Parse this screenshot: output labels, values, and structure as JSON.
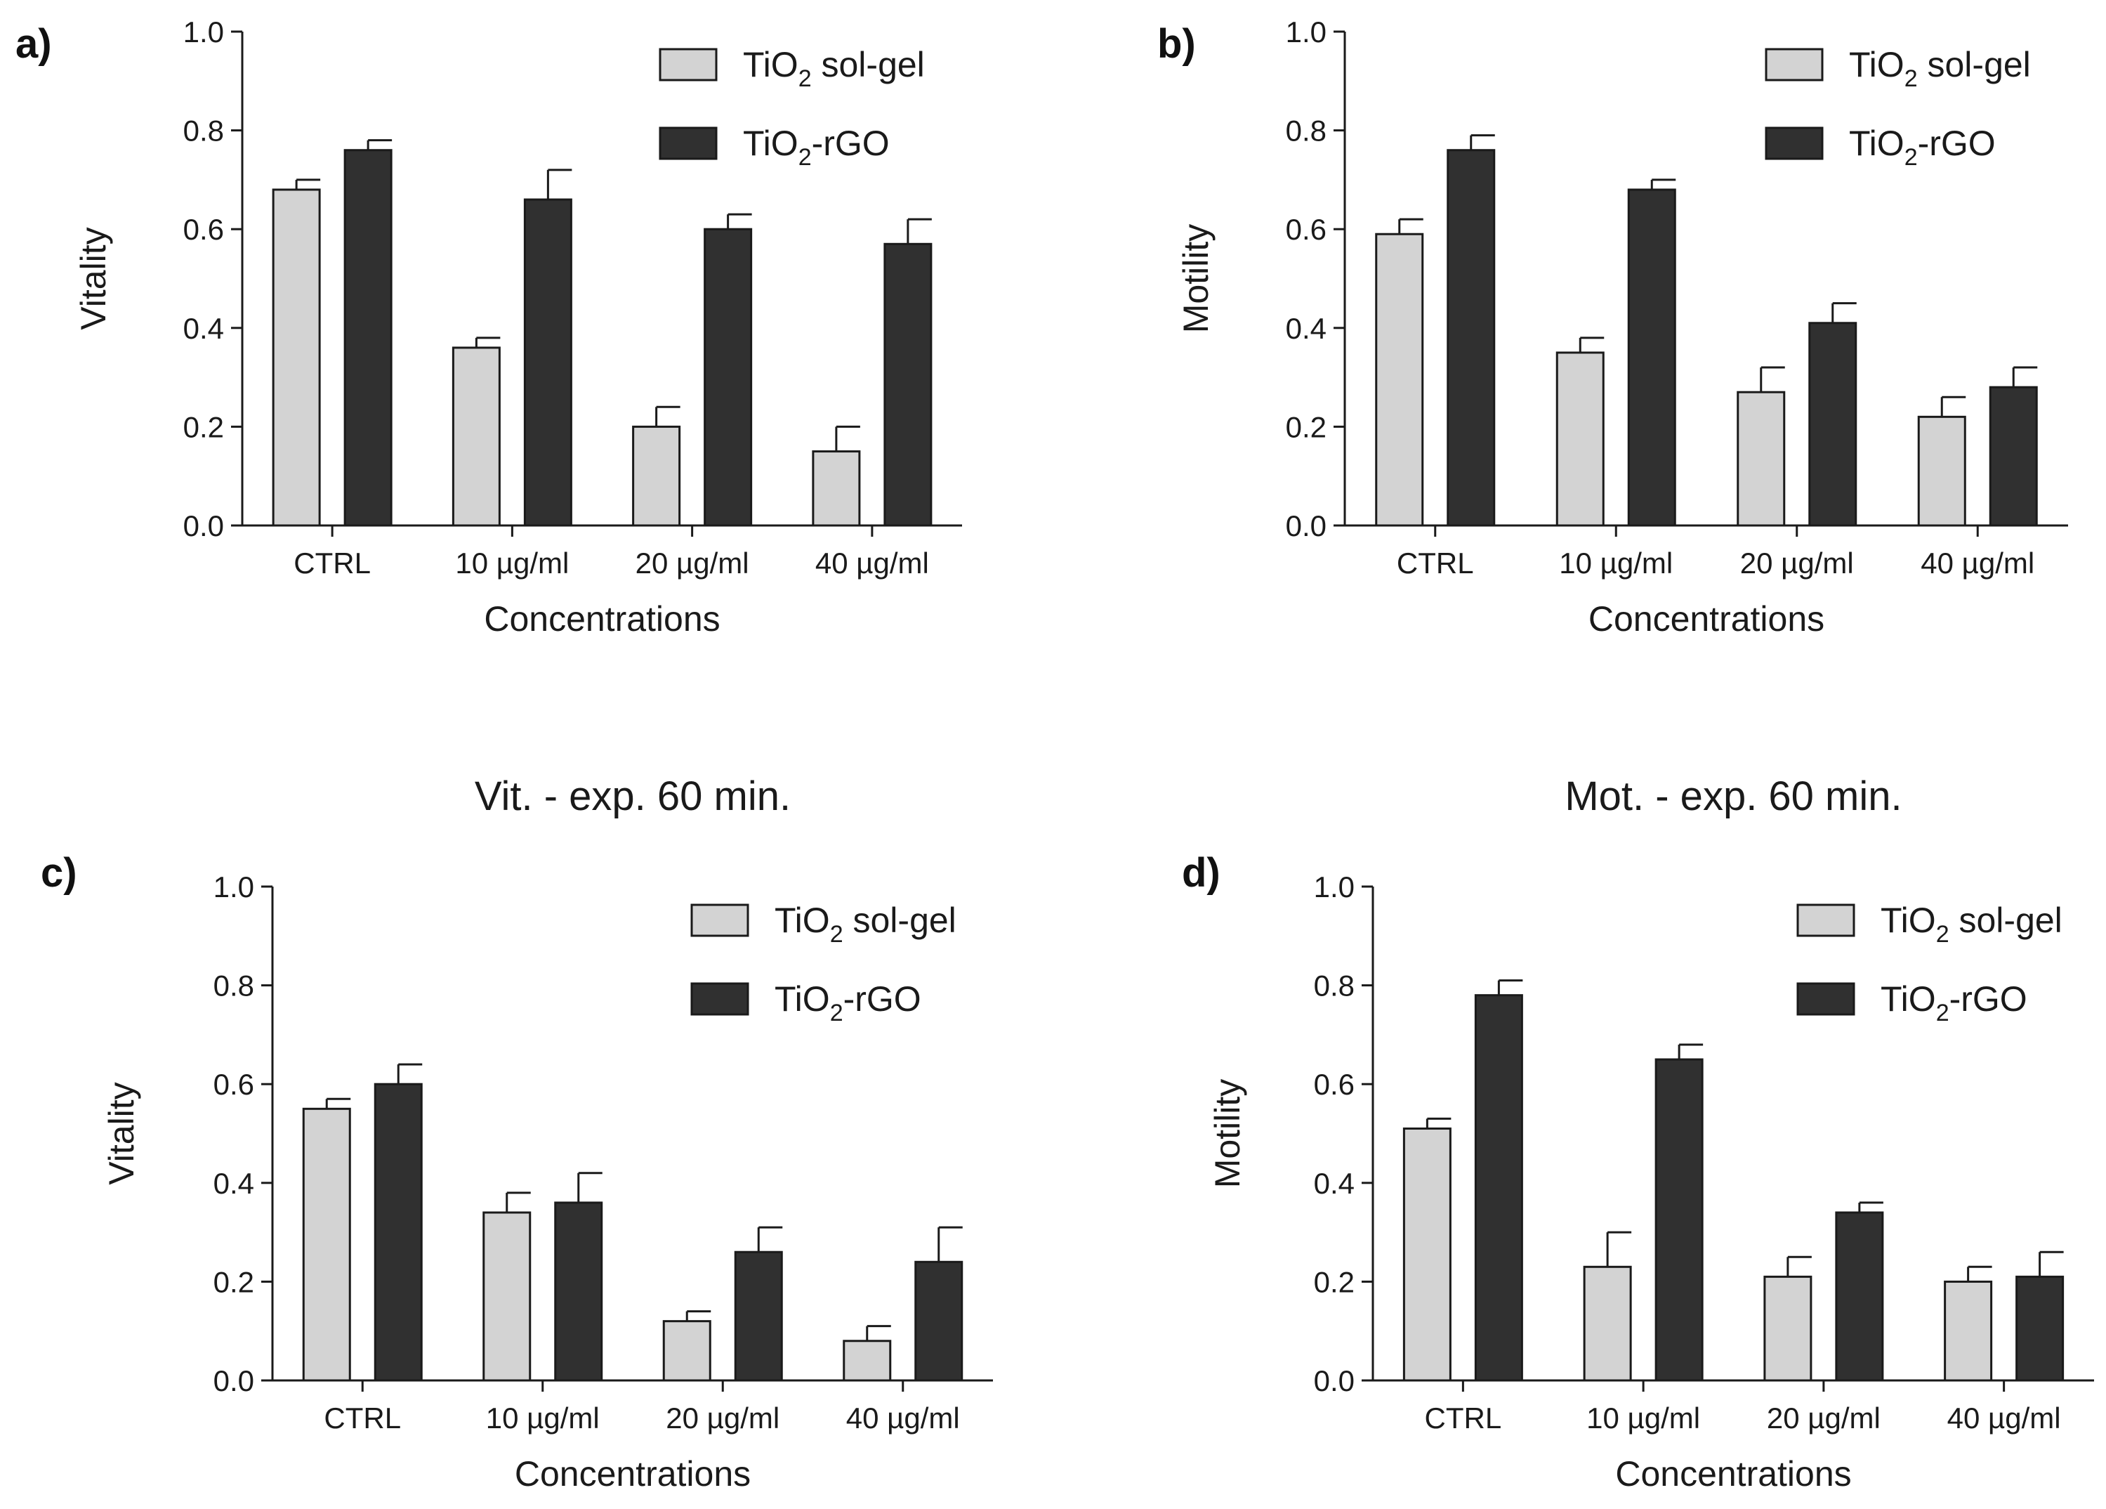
{
  "colors": {
    "series_light": "#d3d3d3",
    "series_dark": "#303030",
    "axis": "#1a1a1a"
  },
  "chart_data": [
    {
      "type": "bar",
      "panel": "a)",
      "title": "",
      "xlabel": "Concentrations",
      "ylabel": "Vitality",
      "ylim": [
        0,
        1.0
      ],
      "yticks": [
        "0.0",
        "0.2",
        "0.4",
        "0.6",
        "0.8",
        "1.0"
      ],
      "categories": [
        "CTRL",
        "10 µg/ml",
        "20 µg/ml",
        "40 µg/ml"
      ],
      "legend_position": "top-right",
      "series": [
        {
          "name": "TiO2 sol-gel",
          "legend_main": "TiO",
          "legend_sub": "2",
          "legend_rest": " sol-gel",
          "color": "#d3d3d3",
          "values": [
            0.68,
            0.36,
            0.2,
            0.15
          ],
          "errors": [
            0.02,
            0.02,
            0.04,
            0.05
          ]
        },
        {
          "name": "TiO2-rGO",
          "legend_main": "TiO",
          "legend_sub": "2",
          "legend_rest": "-rGO",
          "color": "#303030",
          "values": [
            0.76,
            0.66,
            0.6,
            0.57
          ],
          "errors": [
            0.02,
            0.06,
            0.03,
            0.05
          ]
        }
      ]
    },
    {
      "type": "bar",
      "panel": "b)",
      "title": "",
      "xlabel": "Concentrations",
      "ylabel": "Motility",
      "ylim": [
        0,
        1.0
      ],
      "yticks": [
        "0.0",
        "0.2",
        "0.4",
        "0.6",
        "0.8",
        "1.0"
      ],
      "categories": [
        "CTRL",
        "10 µg/ml",
        "20 µg/ml",
        "40 µg/ml"
      ],
      "legend_position": "top-right",
      "series": [
        {
          "name": "TiO2 sol-gel",
          "legend_main": "TiO",
          "legend_sub": "2",
          "legend_rest": " sol-gel",
          "color": "#d3d3d3",
          "values": [
            0.59,
            0.35,
            0.27,
            0.22
          ],
          "errors": [
            0.03,
            0.03,
            0.05,
            0.04
          ]
        },
        {
          "name": "TiO2-rGO",
          "legend_main": "TiO",
          "legend_sub": "2",
          "legend_rest": "-rGO",
          "color": "#303030",
          "values": [
            0.76,
            0.68,
            0.41,
            0.28
          ],
          "errors": [
            0.03,
            0.02,
            0.04,
            0.04
          ]
        }
      ]
    },
    {
      "type": "bar",
      "panel": "c)",
      "title": "Vit. - exp. 60 min.",
      "xlabel": "Concentrations",
      "ylabel": "Vitality",
      "ylim": [
        0,
        1.0
      ],
      "yticks": [
        "0.0",
        "0.2",
        "0.4",
        "0.6",
        "0.8",
        "1.0"
      ],
      "categories": [
        "CTRL",
        "10 µg/ml",
        "20 µg/ml",
        "40 µg/ml"
      ],
      "legend_position": "top-right",
      "series": [
        {
          "name": "TiO2 sol-gel",
          "legend_main": "TiO",
          "legend_sub": "2",
          "legend_rest": " sol-gel",
          "color": "#d3d3d3",
          "values": [
            0.55,
            0.34,
            0.12,
            0.08
          ],
          "errors": [
            0.02,
            0.04,
            0.02,
            0.03
          ]
        },
        {
          "name": "TiO2-rGO",
          "legend_main": "TiO",
          "legend_sub": "2",
          "legend_rest": "-rGO",
          "color": "#303030",
          "values": [
            0.6,
            0.36,
            0.26,
            0.24
          ],
          "errors": [
            0.04,
            0.06,
            0.05,
            0.07
          ]
        }
      ]
    },
    {
      "type": "bar",
      "panel": "d)",
      "title": "Mot. - exp. 60 min.",
      "xlabel": "Concentrations",
      "ylabel": "Motility",
      "ylim": [
        0,
        1.0
      ],
      "yticks": [
        "0.0",
        "0.2",
        "0.4",
        "0.6",
        "0.8",
        "1.0"
      ],
      "categories": [
        "CTRL",
        "10 µg/ml",
        "20 µg/ml",
        "40 µg/ml"
      ],
      "legend_position": "top-right",
      "series": [
        {
          "name": "TiO2 sol-gel",
          "legend_main": "TiO",
          "legend_sub": "2",
          "legend_rest": " sol-gel",
          "color": "#d3d3d3",
          "values": [
            0.51,
            0.23,
            0.21,
            0.2
          ],
          "errors": [
            0.02,
            0.07,
            0.04,
            0.03
          ]
        },
        {
          "name": "TiO2-rGO",
          "legend_main": "TiO",
          "legend_sub": "2",
          "legend_rest": "-rGO",
          "color": "#303030",
          "values": [
            0.78,
            0.65,
            0.34,
            0.21
          ],
          "errors": [
            0.03,
            0.03,
            0.02,
            0.05
          ]
        }
      ]
    }
  ]
}
